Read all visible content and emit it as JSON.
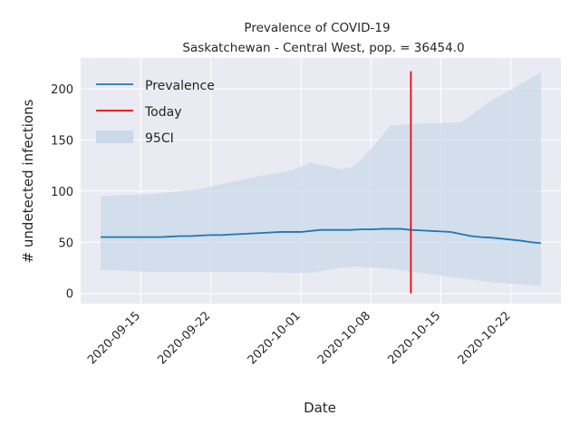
{
  "chart_data": {
    "type": "line",
    "title": "Prevalence of COVID-19",
    "subtitle": "Saskatchewan - Central West, pop. = 36454.0",
    "xlabel": "Date",
    "ylabel": "# undetected infections",
    "xlim": [
      "2020-09-09",
      "2020-10-27"
    ],
    "ylim": [
      -10,
      230
    ],
    "grid": true,
    "legend_position": "top-left",
    "x_ticks": [
      "2020-09-15",
      "2020-09-22",
      "2020-10-01",
      "2020-10-08",
      "2020-10-15",
      "2020-10-22"
    ],
    "y_ticks": [
      0,
      50,
      100,
      150,
      200
    ],
    "colors": {
      "background": "#eaeaf2",
      "grid": "#ffffff",
      "prevalence": "#1f77b4",
      "today": "#ff0000",
      "band": "#c9d9ea"
    },
    "series": [
      {
        "name": "Prevalence",
        "type": "line",
        "x": [
          "2020-09-11",
          "2020-09-12",
          "2020-09-13",
          "2020-09-14",
          "2020-09-15",
          "2020-09-16",
          "2020-09-17",
          "2020-09-18",
          "2020-09-19",
          "2020-09-20",
          "2020-09-21",
          "2020-09-22",
          "2020-09-23",
          "2020-09-24",
          "2020-09-25",
          "2020-09-26",
          "2020-09-27",
          "2020-09-28",
          "2020-09-29",
          "2020-09-30",
          "2020-10-01",
          "2020-10-02",
          "2020-10-03",
          "2020-10-04",
          "2020-10-05",
          "2020-10-06",
          "2020-10-07",
          "2020-10-08",
          "2020-10-09",
          "2020-10-10",
          "2020-10-11",
          "2020-10-12",
          "2020-10-13",
          "2020-10-14",
          "2020-10-15",
          "2020-10-16",
          "2020-10-17",
          "2020-10-18",
          "2020-10-19",
          "2020-10-20",
          "2020-10-21",
          "2020-10-22",
          "2020-10-23",
          "2020-10-24",
          "2020-10-25"
        ],
        "y": [
          55,
          55,
          55,
          55,
          55,
          55,
          55,
          55.5,
          56,
          56,
          56.5,
          57,
          57,
          57.5,
          58,
          58.5,
          59,
          59.5,
          60,
          60,
          60,
          61,
          62,
          62,
          62,
          62,
          62.5,
          62.5,
          63,
          63,
          63,
          62,
          61.5,
          61,
          60.5,
          60,
          58,
          56,
          55,
          54.5,
          53.5,
          52.5,
          51.5,
          50,
          49
        ]
      },
      {
        "name": "Today",
        "type": "vline",
        "x": "2020-10-12",
        "y_range": [
          0,
          217
        ]
      },
      {
        "name": "95CI",
        "type": "band",
        "x": [
          "2020-09-11",
          "2020-09-16",
          "2020-09-21",
          "2020-09-26",
          "2020-09-30",
          "2020-10-02",
          "2020-10-05",
          "2020-10-06",
          "2020-10-07",
          "2020-10-10",
          "2020-10-13",
          "2020-10-17",
          "2020-10-20",
          "2020-10-25"
        ],
        "lower": [
          23,
          21,
          21,
          21,
          20,
          20,
          25,
          26,
          26,
          24,
          20,
          15,
          11,
          7
        ],
        "upper": [
          95,
          97,
          102,
          113,
          120,
          128,
          121,
          123,
          130,
          164,
          166,
          167,
          188,
          216
        ]
      }
    ]
  }
}
